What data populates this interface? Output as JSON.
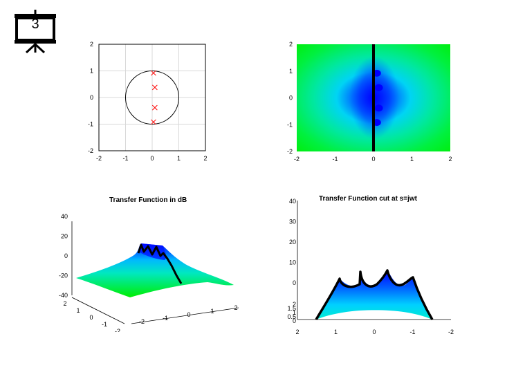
{
  "slide_number": "3",
  "colors": {
    "blue": "#0000ff",
    "cyan": "#00e0f0",
    "green": "#00ee00",
    "marker": "#ff0000"
  },
  "chart_data": [
    {
      "type": "scatter",
      "name": "pole-zero",
      "title": "",
      "xlim": [
        -2,
        2
      ],
      "ylim": [
        -2,
        2
      ],
      "xticks": [
        "-2",
        "-1",
        "0",
        "1",
        "2"
      ],
      "yticks": [
        "2",
        "1",
        "0",
        "-1",
        "-2"
      ],
      "grid": true,
      "unit_circle": true,
      "poles": [
        [
          0.05,
          0.92
        ],
        [
          0.1,
          0.38
        ],
        [
          0.1,
          -0.38
        ],
        [
          0.05,
          -0.92
        ]
      ]
    },
    {
      "type": "heatmap",
      "name": "magnitude-top-view",
      "title": "",
      "xlim": [
        -2,
        2
      ],
      "ylim": [
        -2,
        2
      ],
      "xticks": [
        "-2",
        "-1",
        "0",
        "1",
        "2"
      ],
      "yticks": [
        "2",
        "1",
        "0",
        "-1",
        "-2"
      ],
      "cut_line_x": 0
    },
    {
      "type": "area",
      "name": "surface-3d",
      "title": "Transfer Function in dB",
      "zticks": [
        "40",
        "20",
        "0",
        "-20",
        "-40"
      ],
      "yticks": [
        "2",
        "1",
        "0",
        "-1",
        "-2"
      ],
      "xticks": [
        "-2",
        "-1",
        "0",
        "1",
        "2"
      ]
    },
    {
      "type": "area",
      "name": "jw-cut",
      "title": "Transfer Function cut at s=jwt",
      "zticks": [
        "40",
        "30",
        "20",
        "10",
        "0"
      ],
      "zticks_small": [
        "2",
        "1.5",
        "1",
        "0.5",
        "0"
      ],
      "xticks": [
        "2",
        "1",
        "0",
        "-1",
        "-2"
      ]
    }
  ]
}
